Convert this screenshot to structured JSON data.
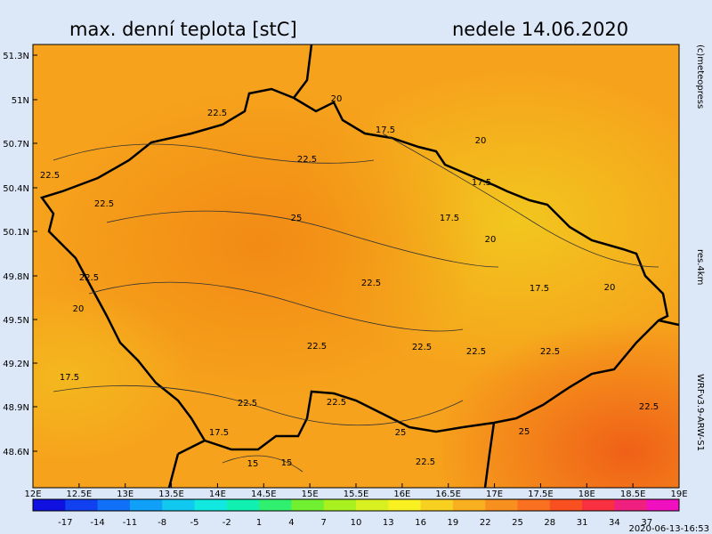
{
  "header": {
    "title": "max. denní teplota [stC]",
    "date": "nedele 14.06.2020"
  },
  "side": {
    "credit": "(c)meteopress",
    "resolution": "res.4km",
    "model": "WRFv3.9-ARW-S1"
  },
  "timestamp": "2020-06-13-16:53",
  "lat_labels": [
    "51.3N",
    "51N",
    "50.7N",
    "50.4N",
    "50.1N",
    "49.8N",
    "49.5N",
    "49.2N",
    "48.9N",
    "48.6N"
  ],
  "lon_labels": [
    "12E",
    "12.5E",
    "13E",
    "13.5E",
    "14E",
    "14.5E",
    "15E",
    "15.5E",
    "16E",
    "16.5E",
    "17E",
    "17.5E",
    "18E",
    "18.5E",
    "19E"
  ],
  "colorbar_labels": [
    -17,
    -14,
    -11,
    -8,
    -5,
    -2,
    1,
    4,
    7,
    10,
    13,
    16,
    19,
    22,
    25,
    28,
    31,
    34,
    37
  ],
  "contour_labels": [
    22.5,
    20,
    17.5,
    20,
    22.5,
    22.5,
    17.5,
    22.5,
    25,
    17.5,
    20,
    17.5,
    20,
    22.5,
    22.5,
    20,
    22.5,
    22.5,
    22.5,
    22.5,
    17.5,
    22.5,
    22.5,
    22.5,
    25,
    25,
    17.5,
    15,
    15,
    22.5
  ]
}
